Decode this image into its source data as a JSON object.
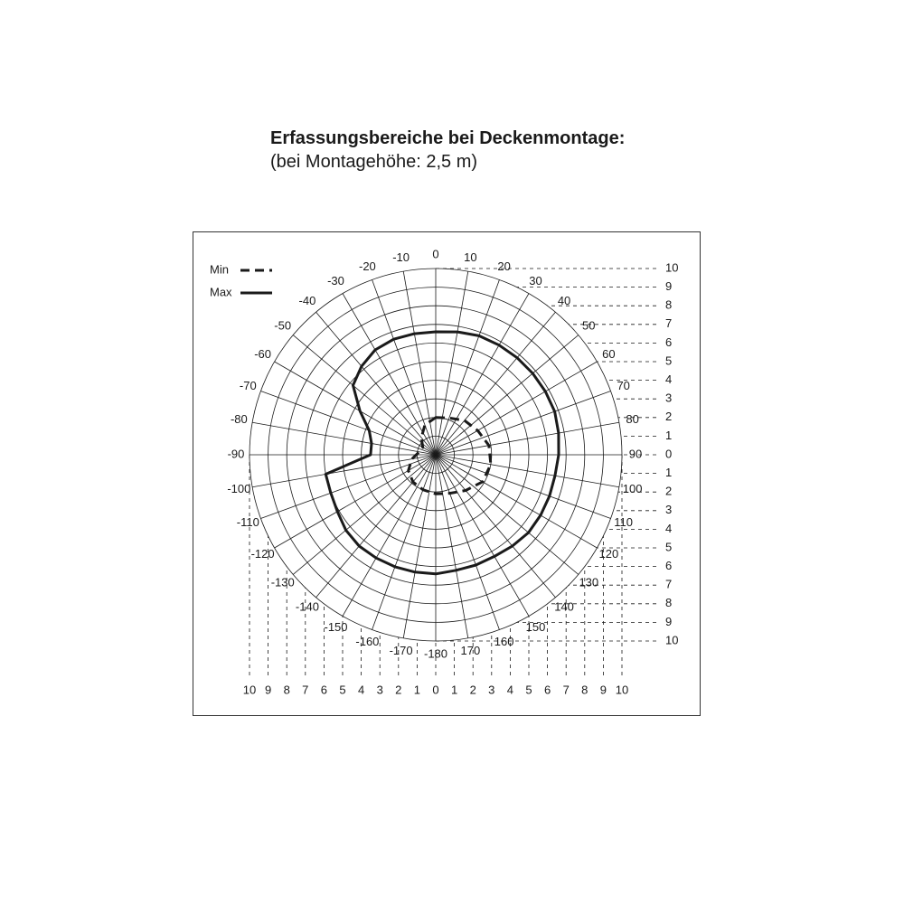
{
  "header": {
    "title": "Erfassungsbereiche bei Deckenmontage:",
    "subtitle": "(bei Montagehöhe: 2,5 m)"
  },
  "chart_data": {
    "type": "polar",
    "legend": {
      "placement": "top-left",
      "entries": [
        {
          "label": "Min",
          "style": "dashed"
        },
        {
          "label": "Max",
          "style": "solid"
        }
      ]
    },
    "angle_labels": [
      "0",
      "10",
      "20",
      "30",
      "40",
      "50",
      "60",
      "70",
      "80",
      "90",
      "100",
      "110",
      "120",
      "130",
      "140",
      "150",
      "160",
      "170",
      "-180",
      "-170",
      "-160",
      "-150",
      "-140",
      "-130",
      "-120",
      "-110",
      "-100",
      "-90",
      "-80",
      "-70",
      "-60",
      "-50",
      "-40",
      "-30",
      "-20",
      "-10"
    ],
    "radial_range": [
      0,
      10
    ],
    "right_scale_labels": [
      "10",
      "9",
      "8",
      "7",
      "6",
      "5",
      "4",
      "3",
      "2",
      "1",
      "0",
      "1",
      "2",
      "3",
      "4",
      "5",
      "6",
      "7",
      "8",
      "9",
      "10"
    ],
    "bottom_scale_labels": [
      "10",
      "9",
      "8",
      "7",
      "6",
      "5",
      "4",
      "3",
      "2",
      "1",
      "0",
      "1",
      "2",
      "3",
      "4",
      "5",
      "6",
      "7",
      "8",
      "9",
      "10"
    ],
    "color": "#1a1a1a",
    "series": [
      {
        "name": "Min",
        "style": "dashed",
        "angles": [
          0,
          20,
          40,
          60,
          80,
          100,
          120,
          140,
          160,
          180,
          200,
          220,
          240,
          260,
          280,
          300,
          320,
          340
        ],
        "r": [
          2.0,
          2.1,
          2.4,
          2.6,
          2.9,
          3.0,
          2.9,
          2.5,
          2.2,
          2.1,
          2.0,
          1.9,
          1.7,
          1.3,
          0.9,
          0.8,
          1.2,
          1.7
        ]
      },
      {
        "name": "Max",
        "style": "solid",
        "angles": [
          0,
          10,
          20,
          30,
          40,
          50,
          60,
          70,
          80,
          90,
          100,
          110,
          120,
          130,
          140,
          150,
          160,
          170,
          180,
          190,
          200,
          210,
          220,
          230,
          240,
          250,
          260,
          270,
          280,
          290,
          300,
          310,
          320,
          330,
          340,
          350
        ],
        "r": [
          6.6,
          6.7,
          6.8,
          6.8,
          6.8,
          6.8,
          6.8,
          6.8,
          6.7,
          6.6,
          6.5,
          6.5,
          6.5,
          6.5,
          6.4,
          6.3,
          6.3,
          6.3,
          6.4,
          6.4,
          6.4,
          6.4,
          6.4,
          6.3,
          6.1,
          6.0,
          6.0,
          3.5,
          3.5,
          3.8,
          4.7,
          5.8,
          6.2,
          6.5,
          6.6,
          6.6
        ]
      }
    ]
  }
}
